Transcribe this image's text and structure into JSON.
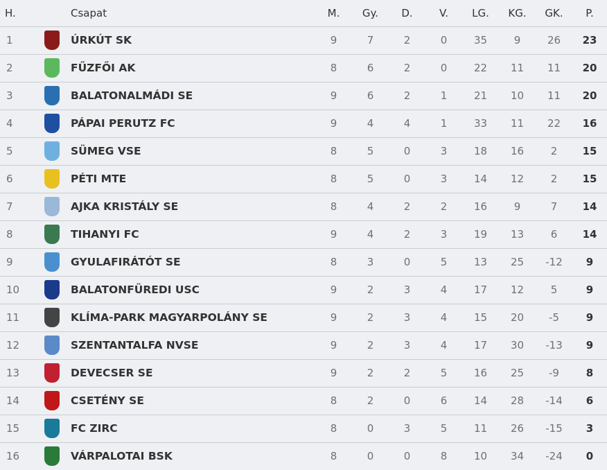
{
  "headers": {
    "pos": "H.",
    "team": "Csapat",
    "m": "M.",
    "gy": "Gy.",
    "d": "D.",
    "v": "V.",
    "lg": "LG.",
    "kg": "KG.",
    "gk": "GK.",
    "p": "P."
  },
  "rows": [
    {
      "pos": "1",
      "team": "ÚRKÚT SK",
      "m": "9",
      "gy": "7",
      "d": "2",
      "v": "0",
      "lg": "35",
      "kg": "9",
      "gk": "26",
      "p": "23",
      "logo_color": "#8b1a1a"
    },
    {
      "pos": "2",
      "team": "FŰZFŐI AK",
      "m": "8",
      "gy": "6",
      "d": "2",
      "v": "0",
      "lg": "22",
      "kg": "11",
      "gk": "11",
      "p": "20",
      "logo_color": "#5cb85c"
    },
    {
      "pos": "3",
      "team": "BALATONALMÁDI SE",
      "m": "9",
      "gy": "6",
      "d": "2",
      "v": "1",
      "lg": "21",
      "kg": "10",
      "gk": "11",
      "p": "20",
      "logo_color": "#2a6fb0"
    },
    {
      "pos": "4",
      "team": "PÁPAI PERUTZ FC",
      "m": "9",
      "gy": "4",
      "d": "4",
      "v": "1",
      "lg": "33",
      "kg": "11",
      "gk": "22",
      "p": "16",
      "logo_color": "#1f4fa0"
    },
    {
      "pos": "5",
      "team": "SÜMEG VSE",
      "m": "8",
      "gy": "5",
      "d": "0",
      "v": "3",
      "lg": "18",
      "kg": "16",
      "gk": "2",
      "p": "15",
      "logo_color": "#6fb0e0"
    },
    {
      "pos": "6",
      "team": "PÉTI MTE",
      "m": "8",
      "gy": "5",
      "d": "0",
      "v": "3",
      "lg": "14",
      "kg": "12",
      "gk": "2",
      "p": "15",
      "logo_color": "#e8c020"
    },
    {
      "pos": "7",
      "team": "AJKA KRISTÁLY SE",
      "m": "8",
      "gy": "4",
      "d": "2",
      "v": "2",
      "lg": "16",
      "kg": "9",
      "gk": "7",
      "p": "14",
      "logo_color": "#9ab8d8"
    },
    {
      "pos": "8",
      "team": "TIHANYI FC",
      "m": "9",
      "gy": "4",
      "d": "2",
      "v": "3",
      "lg": "19",
      "kg": "13",
      "gk": "6",
      "p": "14",
      "logo_color": "#3a7a50"
    },
    {
      "pos": "9",
      "team": "GYULAFIRÁTÓT SE",
      "m": "8",
      "gy": "3",
      "d": "0",
      "v": "5",
      "lg": "13",
      "kg": "25",
      "gk": "-12",
      "p": "9",
      "logo_color": "#4a90d0"
    },
    {
      "pos": "10",
      "team": "BALATONFÜREDI USC",
      "m": "9",
      "gy": "2",
      "d": "3",
      "v": "4",
      "lg": "17",
      "kg": "12",
      "gk": "5",
      "p": "9",
      "logo_color": "#1a3a8a"
    },
    {
      "pos": "11",
      "team": "KLÍMA-PARK MAGYARPOLÁNY SE",
      "m": "9",
      "gy": "2",
      "d": "3",
      "v": "4",
      "lg": "15",
      "kg": "20",
      "gk": "-5",
      "p": "9",
      "logo_color": "#444444"
    },
    {
      "pos": "12",
      "team": "SZENTANTALFA NVSE",
      "m": "9",
      "gy": "2",
      "d": "3",
      "v": "4",
      "lg": "17",
      "kg": "30",
      "gk": "-13",
      "p": "9",
      "logo_color": "#5a8ac8"
    },
    {
      "pos": "13",
      "team": "DEVECSER SE",
      "m": "9",
      "gy": "2",
      "d": "2",
      "v": "5",
      "lg": "16",
      "kg": "25",
      "gk": "-9",
      "p": "8",
      "logo_color": "#c02030"
    },
    {
      "pos": "14",
      "team": "CSETÉNY SE",
      "m": "8",
      "gy": "2",
      "d": "0",
      "v": "6",
      "lg": "14",
      "kg": "28",
      "gk": "-14",
      "p": "6",
      "logo_color": "#c01818"
    },
    {
      "pos": "15",
      "team": "FC ZIRC",
      "m": "8",
      "gy": "0",
      "d": "3",
      "v": "5",
      "lg": "11",
      "kg": "26",
      "gk": "-15",
      "p": "3",
      "logo_color": "#1a7a9a"
    },
    {
      "pos": "16",
      "team": "VÁRPALOTAI BSK",
      "m": "8",
      "gy": "0",
      "d": "0",
      "v": "8",
      "lg": "10",
      "kg": "34",
      "gk": "-24",
      "p": "0",
      "logo_color": "#2a7a3a"
    }
  ]
}
